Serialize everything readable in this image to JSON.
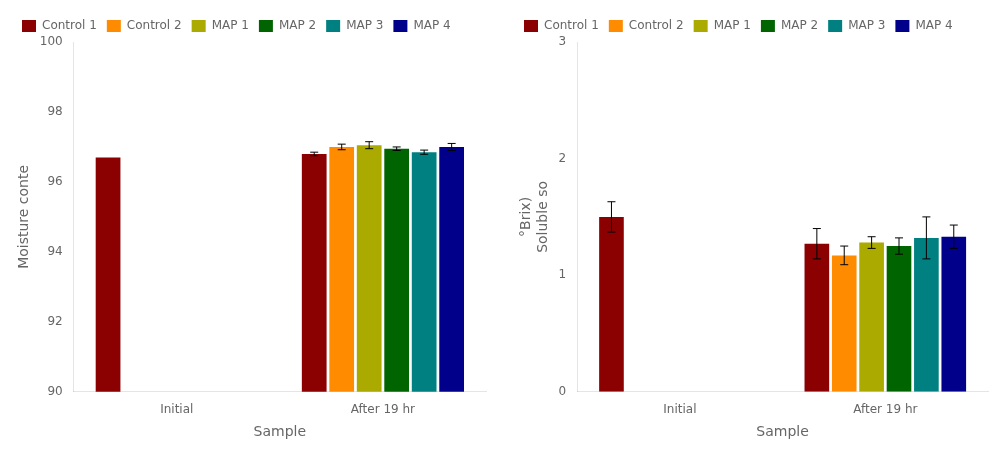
{
  "chart_data": [
    {
      "type": "bar",
      "categories": [
        "Initial",
        "After 19 hr"
      ],
      "series": [
        {
          "name": "Control 1",
          "color": "#8B0000",
          "values": [
            96.7,
            96.8
          ],
          "errors": [
            0.0,
            0.05
          ]
        },
        {
          "name": "Control 2",
          "color": "#FF8C00",
          "values": [
            null,
            97.0
          ],
          "errors": [
            null,
            0.08
          ]
        },
        {
          "name": "MAP 1",
          "color": "#AAAA00",
          "values": [
            null,
            97.05
          ],
          "errors": [
            null,
            0.1
          ]
        },
        {
          "name": "MAP 2",
          "color": "#006400",
          "values": [
            null,
            96.95
          ],
          "errors": [
            null,
            0.05
          ]
        },
        {
          "name": "MAP 3",
          "color": "#008080",
          "values": [
            null,
            96.85
          ],
          "errors": [
            null,
            0.06
          ]
        },
        {
          "name": "MAP 4",
          "color": "#00008B",
          "values": [
            null,
            97.0
          ],
          "errors": [
            null,
            0.1
          ]
        }
      ],
      "xlabel": "Sample",
      "ylabel": "Moisture conte",
      "ylim": [
        90,
        100
      ],
      "yticks": [
        90,
        92,
        94,
        96,
        98,
        100
      ],
      "grid": false,
      "legend": "upper left"
    },
    {
      "type": "bar",
      "categories": [
        "Initial",
        "After 19 hr"
      ],
      "series": [
        {
          "name": "Control 1",
          "color": "#8B0000",
          "values": [
            1.5,
            1.27
          ],
          "errors": [
            0.13,
            0.13
          ]
        },
        {
          "name": "Control 2",
          "color": "#FF8C00",
          "values": [
            null,
            1.17
          ],
          "errors": [
            null,
            0.08
          ]
        },
        {
          "name": "MAP 1",
          "color": "#AAAA00",
          "values": [
            null,
            1.28
          ],
          "errors": [
            null,
            0.05
          ]
        },
        {
          "name": "MAP 2",
          "color": "#006400",
          "values": [
            null,
            1.25
          ],
          "errors": [
            null,
            0.07
          ]
        },
        {
          "name": "MAP 3",
          "color": "#008080",
          "values": [
            null,
            1.32
          ],
          "errors": [
            null,
            0.18
          ]
        },
        {
          "name": "MAP 4",
          "color": "#00008B",
          "values": [
            null,
            1.33
          ],
          "errors": [
            null,
            0.1
          ]
        }
      ],
      "xlabel": "Sample",
      "ylabel": [
        "°Brix)",
        "Soluble so"
      ],
      "ylim": [
        0,
        3
      ],
      "yticks": [
        0,
        1,
        2,
        3
      ],
      "grid": false,
      "legend": "upper left"
    }
  ]
}
